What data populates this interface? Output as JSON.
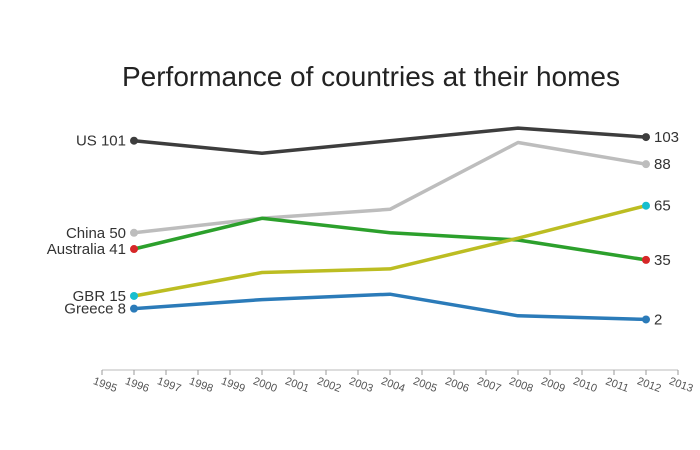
{
  "chart_data": {
    "type": "line",
    "title": "Performance of countries at their homes",
    "xlabel": "",
    "ylabel": "",
    "x_ticks": [
      "1995",
      "1996",
      "1997",
      "1998",
      "1999",
      "2000",
      "2001",
      "2002",
      "2003",
      "2004",
      "2005",
      "2006",
      "2007",
      "2008",
      "2009",
      "2010",
      "2011",
      "2012",
      "2013"
    ],
    "xlim": [
      1995,
      2013
    ],
    "ylim": [
      -26,
      118
    ],
    "grid": false,
    "legend": "none",
    "series": [
      {
        "name": "US",
        "color": "#3d3d3d",
        "x": [
          1996,
          2000,
          2004,
          2008,
          2012
        ],
        "values": [
          101,
          94,
          101,
          108,
          103
        ],
        "start_label": "US 101",
        "end_label": "103",
        "end_marker_color": "#3d3d3d"
      },
      {
        "name": "China",
        "color": "#bdbdbd",
        "x": [
          1996,
          2000,
          2004,
          2008,
          2012
        ],
        "values": [
          50,
          58,
          63,
          100,
          88
        ],
        "start_label": "China 50",
        "end_label": "88",
        "end_marker_color": "#bdbdbd"
      },
      {
        "name": "Australia",
        "color": "#2ca02c",
        "x": [
          1996,
          2000,
          2004,
          2008,
          2012
        ],
        "values": [
          41,
          58,
          50,
          46,
          35
        ],
        "start_label": "Australia 41",
        "end_label": "35",
        "end_marker_color": "#d62728",
        "start_marker_color": "#d62728"
      },
      {
        "name": "GBR",
        "color": "#bcbd22",
        "x": [
          1996,
          2000,
          2004,
          2008,
          2012
        ],
        "values": [
          15,
          28,
          30,
          47,
          65
        ],
        "start_label": "GBR 15",
        "end_label": "65",
        "end_marker_color": "#17becf",
        "start_marker_color": "#17becf"
      },
      {
        "name": "Greece",
        "color": "#2b7bb9",
        "x": [
          1996,
          2000,
          2004,
          2008,
          2012
        ],
        "values": [
          8,
          13,
          16,
          4,
          2
        ],
        "start_label": "Greece 8",
        "end_label": "2",
        "end_marker_color": "#2b7bb9"
      }
    ]
  }
}
